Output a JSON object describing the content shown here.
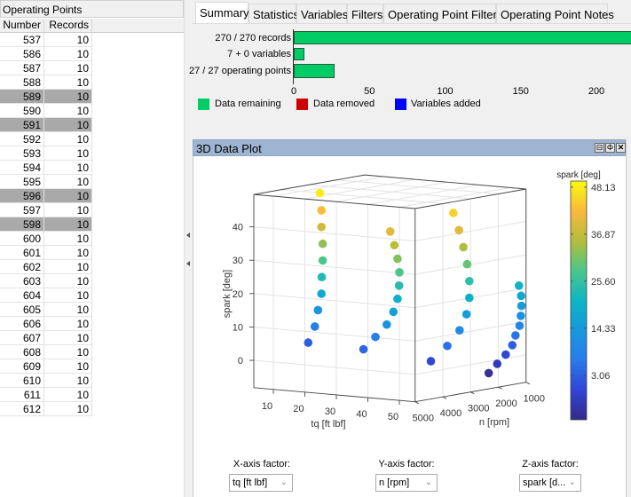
{
  "operating_points": {
    "title": "Operating Points",
    "columns": [
      "Number",
      "Records"
    ],
    "rows": [
      {
        "number": "537",
        "records": "10",
        "selected": false
      },
      {
        "number": "586",
        "records": "10",
        "selected": false
      },
      {
        "number": "587",
        "records": "10",
        "selected": false
      },
      {
        "number": "588",
        "records": "10",
        "selected": false
      },
      {
        "number": "589",
        "records": "10",
        "selected": true
      },
      {
        "number": "590",
        "records": "10",
        "selected": false
      },
      {
        "number": "591",
        "records": "10",
        "selected": true
      },
      {
        "number": "592",
        "records": "10",
        "selected": false
      },
      {
        "number": "593",
        "records": "10",
        "selected": false
      },
      {
        "number": "594",
        "records": "10",
        "selected": false
      },
      {
        "number": "595",
        "records": "10",
        "selected": false
      },
      {
        "number": "596",
        "records": "10",
        "selected": true
      },
      {
        "number": "597",
        "records": "10",
        "selected": false
      },
      {
        "number": "598",
        "records": "10",
        "selected": true
      },
      {
        "number": "600",
        "records": "10",
        "selected": false
      },
      {
        "number": "601",
        "records": "10",
        "selected": false
      },
      {
        "number": "602",
        "records": "10",
        "selected": false
      },
      {
        "number": "603",
        "records": "10",
        "selected": false
      },
      {
        "number": "604",
        "records": "10",
        "selected": false
      },
      {
        "number": "605",
        "records": "10",
        "selected": false
      },
      {
        "number": "606",
        "records": "10",
        "selected": false
      },
      {
        "number": "607",
        "records": "10",
        "selected": false
      },
      {
        "number": "608",
        "records": "10",
        "selected": false
      },
      {
        "number": "609",
        "records": "10",
        "selected": false
      },
      {
        "number": "610",
        "records": "10",
        "selected": false
      },
      {
        "number": "611",
        "records": "10",
        "selected": false
      },
      {
        "number": "612",
        "records": "10",
        "selected": false
      }
    ]
  },
  "tabs": [
    {
      "label": "Summary",
      "active": true
    },
    {
      "label": "Statistics",
      "active": false
    },
    {
      "label": "Variables",
      "active": false
    },
    {
      "label": "Filters",
      "active": false
    },
    {
      "label": "Operating Point Filters",
      "active": false
    },
    {
      "label": "Operating Point Notes",
      "active": false
    }
  ],
  "summary": {
    "bars": [
      {
        "label": "270 / 270 records",
        "value": 270
      },
      {
        "label": "7 + 0 variables",
        "value": 7
      },
      {
        "label": "27 / 27 operating points",
        "value": 27
      }
    ],
    "x_ticks": [
      "0",
      "50",
      "100",
      "150",
      "200"
    ],
    "legend": [
      {
        "label": "Data remaining",
        "color": "#00cc66"
      },
      {
        "label": "Data removed",
        "color": "#cc0000"
      },
      {
        "label": "Variables added",
        "color": "#0000ff"
      }
    ]
  },
  "plot_panel": {
    "title": "3D Data Plot",
    "buttons": [
      "minimize",
      "float",
      "close"
    ]
  },
  "chart_data": {
    "type": "scatter3d",
    "xlabel": "tq [ft lbf]",
    "ylabel": "n [rpm]",
    "zlabel": "spark [deg]",
    "xlim": [
      3.8,
      55
    ],
    "ylim": [
      1000,
      5000
    ],
    "zlim": [
      -8.2,
      49.7
    ],
    "x_ticks": [
      10,
      20,
      30,
      40,
      50
    ],
    "y_ticks": [
      1000,
      2000,
      3000,
      4000,
      5000
    ],
    "z_ticks": [
      0,
      10,
      20,
      30,
      40
    ],
    "grid": true,
    "colorbar": {
      "title": "spark [deg]",
      "ticks": [
        "48.13",
        "36.87",
        "25.60",
        "14.33",
        "3.06"
      ],
      "range": [
        -7.6,
        49.6
      ],
      "colormap": "parula"
    },
    "series": [
      {
        "n": 3300,
        "tq": [
          9.8,
          10.3,
          10.3,
          10.7,
          10.7,
          10.4,
          10.3,
          9.2,
          8.2,
          6.1
        ],
        "spark": [
          48.13,
          43,
          38,
          33,
          28,
          23,
          18,
          13,
          8,
          3
        ]
      },
      {
        "n": 4000,
        "tq": [
          38.3,
          39.6,
          40.6,
          41.2,
          41.1,
          40.6,
          39.3,
          37.2,
          33.6,
          29.8
        ],
        "spark": [
          40,
          36,
          32,
          28,
          24,
          20,
          16,
          12,
          8,
          4
        ]
      },
      {
        "n": 3000,
        "tq": [
          49.5,
          51.3,
          52.7,
          53.9,
          54.6,
          54.6,
          53.7,
          51.5,
          47.6,
          42.4
        ],
        "spark": [
          45,
          40,
          35,
          30,
          25,
          20,
          15,
          10,
          5,
          0
        ]
      },
      {
        "n": 1200,
        "tq": [
          54.5,
          55.2,
          55.3,
          55.1,
          54.7,
          53.4,
          52.4,
          50.3,
          47.6,
          44.9
        ],
        "spark": [
          21,
          18,
          15,
          12,
          9,
          6,
          3,
          0,
          -3,
          -6
        ]
      }
    ]
  },
  "factors": {
    "x": {
      "label": "X-axis factor:",
      "value": "tq [ft lbf]"
    },
    "y": {
      "label": "Y-axis factor:",
      "value": "n [rpm]"
    },
    "z": {
      "label": "Z-axis factor:",
      "value": "spark [d..."
    }
  }
}
